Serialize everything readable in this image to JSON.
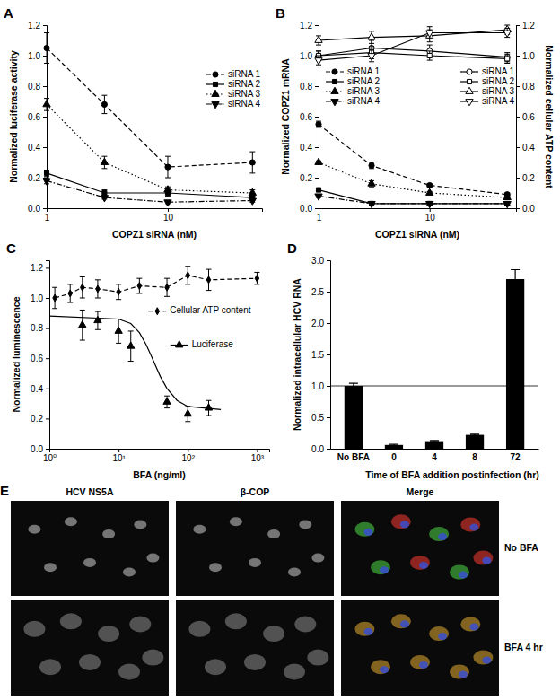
{
  "chart_data": [
    {
      "panel": "A",
      "type": "line",
      "x_label": "COPZ1 siRNA (nM)",
      "y_label": "Normalized luciferase activity",
      "log": "x",
      "xlim": [
        1,
        60
      ],
      "xticks": [
        1,
        10
      ],
      "ylim": [
        0,
        1.2
      ],
      "yticks": [
        {
          "value": 0,
          "label": "0.0"
        },
        {
          "value": 0.2,
          "label": "0.2"
        },
        {
          "value": 0.4,
          "label": "0.4"
        },
        {
          "value": 0.6,
          "label": "0.6"
        },
        {
          "value": 0.8,
          "label": "0.8"
        },
        {
          "value": 1,
          "label": "1.0"
        },
        {
          "value": 1.2,
          "label": "1.2"
        }
      ],
      "legend": "right",
      "x": [
        1,
        3,
        10,
        50
      ],
      "series": [
        {
          "name": "siRNA 1",
          "color": "#000000",
          "marker": "circle",
          "line_style": "dashed",
          "values": [
            1.05,
            0.68,
            0.27,
            0.3
          ],
          "errors": [
            0.1,
            0.06,
            0.07,
            0.07
          ]
        },
        {
          "name": "siRNA 2",
          "color": "#000000",
          "marker": "square",
          "line_style": "solid",
          "values": [
            0.23,
            0.1,
            0.1,
            0.07
          ],
          "errors": [
            0.02,
            0.02,
            0.02,
            0.02
          ]
        },
        {
          "name": "siRNA 3",
          "color": "#000000",
          "marker": "triangle-up",
          "line_style": "dotted",
          "values": [
            0.68,
            0.3,
            0.12,
            0.1
          ],
          "errors": [
            0.04,
            0.04,
            0.02,
            0.02
          ]
        },
        {
          "name": "siRNA 4",
          "color": "#000000",
          "marker": "triangle-down",
          "line_style": "dashdot",
          "values": [
            0.18,
            0.07,
            0.04,
            0.05
          ],
          "errors": [
            0.02,
            0.01,
            0.01,
            0.01
          ]
        }
      ]
    },
    {
      "panel": "B",
      "type": "line",
      "x_label": "COPZ1 siRNA (nM)",
      "y_label": "Normalized COPZ1 mRNA",
      "y2_label": "Normalized cellular ATP content",
      "log": "x",
      "xlim": [
        1,
        60
      ],
      "xticks": [
        1,
        10
      ],
      "ylim": [
        0,
        1.2
      ],
      "yticks": [
        {
          "value": 0,
          "label": "0.0"
        },
        {
          "value": 0.2,
          "label": "0.2"
        },
        {
          "value": 0.4,
          "label": "0.4"
        },
        {
          "value": 0.6,
          "label": "0.6"
        },
        {
          "value": 0.8,
          "label": "0.8"
        },
        {
          "value": 1,
          "label": "1.0"
        },
        {
          "value": 1.2,
          "label": "1.2"
        }
      ],
      "y2lim": [
        0,
        1.2
      ],
      "y2ticks": [
        {
          "value": 0,
          "label": "0.0"
        },
        {
          "value": 0.2,
          "label": "0.2"
        },
        {
          "value": 0.4,
          "label": "0.4"
        },
        {
          "value": 0.6,
          "label": "0.6"
        },
        {
          "value": 0.8,
          "label": "0.8"
        },
        {
          "value": 1,
          "label": "1.0"
        },
        {
          "value": 1.2,
          "label": "1.2"
        }
      ],
      "legend": "center",
      "x": [
        1,
        3,
        10,
        50
      ],
      "series": [
        {
          "name": "siRNA 1",
          "color": "#000000",
          "marker": "circle",
          "line_style": "dashed",
          "values": [
            0.55,
            0.28,
            0.15,
            0.09
          ],
          "errors": [
            0.02,
            0.02,
            0.01,
            0.01
          ]
        },
        {
          "name": "siRNA 2",
          "color": "#000000",
          "marker": "square",
          "line_style": "solid",
          "values": [
            0.12,
            0.03,
            0.03,
            0.03
          ],
          "errors": [
            0.01,
            0.01,
            0.01,
            0.01
          ]
        },
        {
          "name": "siRNA 3",
          "color": "#000000",
          "marker": "triangle-up",
          "line_style": "dotted",
          "values": [
            0.3,
            0.16,
            0.1,
            0.07
          ],
          "errors": [
            0.01,
            0.02,
            0.01,
            0.01
          ]
        },
        {
          "name": "siRNA 4",
          "color": "#000000",
          "marker": "triangle-down",
          "line_style": "dashdot",
          "values": [
            0.08,
            0.03,
            0.03,
            0.03
          ],
          "errors": [
            0.01,
            0.01,
            0.01,
            0.01
          ]
        },
        {
          "name": "siRNA 1",
          "color": "#000000",
          "marker": "open-circle",
          "line_style": "solid",
          "axis": "y2",
          "values": [
            1.0,
            1.05,
            1.03,
            0.99
          ],
          "errors": [
            0.03,
            0.05,
            0.04,
            0.03
          ]
        },
        {
          "name": "siRNA 2",
          "color": "#000000",
          "marker": "open-square",
          "line_style": "solid",
          "axis": "y2",
          "values": [
            1.0,
            1.02,
            1.0,
            0.98
          ],
          "errors": [
            0.03,
            0.04,
            0.03,
            0.03
          ]
        },
        {
          "name": "siRNA 3",
          "color": "#000000",
          "marker": "open-triangle-up",
          "line_style": "solid",
          "axis": "y2",
          "values": [
            1.1,
            1.12,
            1.13,
            1.17
          ],
          "errors": [
            0.03,
            0.04,
            0.04,
            0.03
          ]
        },
        {
          "name": "siRNA 4",
          "color": "#000000",
          "marker": "open-triangle-down",
          "line_style": "solid",
          "axis": "y2",
          "values": [
            0.97,
            1.0,
            1.15,
            1.15
          ],
          "errors": [
            0.03,
            0.04,
            0.04,
            0.03
          ]
        }
      ]
    },
    {
      "panel": "C",
      "type": "line",
      "x_label": "BFA (ng/ml)",
      "y_label": "Normalized luminescence",
      "log": "x",
      "xlim": [
        1,
        1500
      ],
      "xticks": [
        {
          "value": 1,
          "label": "10⁰"
        },
        {
          "value": 10,
          "label": "10¹"
        },
        {
          "value": 100,
          "label": "10²"
        },
        {
          "value": 1000,
          "label": "10³"
        }
      ],
      "ylim": [
        0,
        1.25
      ],
      "yticks": [
        {
          "value": 0,
          "label": "0.0"
        },
        {
          "value": 0.2,
          "label": "0.2"
        },
        {
          "value": 0.4,
          "label": "0.4"
        },
        {
          "value": 0.6,
          "label": "0.6"
        },
        {
          "value": 0.8,
          "label": "0.8"
        },
        {
          "value": 1,
          "label": "1.0"
        },
        {
          "value": 1.2,
          "label": "1.2"
        }
      ],
      "legend": "inline",
      "series": [
        {
          "name": "Cellular ATP content",
          "color": "#000000",
          "marker": "diamond",
          "line_style": "dashed",
          "x": [
            1.2,
            2,
            3,
            5,
            10,
            20,
            50,
            100,
            200,
            1000
          ],
          "values": [
            1.0,
            1.03,
            1.07,
            1.06,
            1.04,
            1.08,
            1.07,
            1.15,
            1.12,
            1.13
          ],
          "errors": [
            0.07,
            0.06,
            0.07,
            0.06,
            0.05,
            0.05,
            0.06,
            0.06,
            0.07,
            0.04
          ]
        },
        {
          "name": "Luciferase",
          "color": "#000000",
          "marker": "triangle-up",
          "line_style": "none",
          "x": [
            3,
            5,
            10,
            15,
            50,
            100,
            200
          ],
          "values": [
            0.82,
            0.85,
            0.78,
            0.68,
            0.31,
            0.23,
            0.27
          ],
          "errors": [
            0.1,
            0.06,
            0.08,
            0.1,
            0.04,
            0.05,
            0.05
          ],
          "fit": {
            "x": [
              1,
              10,
              15,
              20,
              25,
              30,
              35,
              40,
              50,
              70,
              100,
              300
            ],
            "values": [
              0.88,
              0.86,
              0.83,
              0.77,
              0.69,
              0.61,
              0.54,
              0.48,
              0.4,
              0.32,
              0.28,
              0.26
            ]
          }
        }
      ]
    },
    {
      "panel": "D",
      "type": "bar",
      "x_label": "Time of BFA addition postinfection (hr)",
      "y_label": "Normalized intracellular HCV RNA",
      "categories": [
        "No BFA",
        "0",
        "4",
        "8",
        "72"
      ],
      "values": [
        1.0,
        0.06,
        0.12,
        0.22,
        2.7
      ],
      "errors": [
        0.04,
        0.01,
        0.01,
        0.01,
        0.15
      ],
      "reference_line": 1,
      "color": "#000000",
      "ylim": [
        0,
        3
      ],
      "yticks": [
        {
          "value": 0,
          "label": "0.0"
        },
        {
          "value": 0.5,
          "label": "0.5"
        },
        {
          "value": 1,
          "label": "1.0"
        },
        {
          "value": 1.5,
          "label": "1.5"
        },
        {
          "value": 2,
          "label": "2.0"
        },
        {
          "value": 2.5,
          "label": "2.5"
        },
        {
          "value": 3,
          "label": "3.0"
        }
      ]
    }
  ],
  "image_panel": {
    "panel": "E",
    "columns": [
      "HCV NS5A",
      "β-COP",
      "Merge"
    ],
    "rows": [
      "No BFA",
      "BFA 4 hr"
    ]
  }
}
